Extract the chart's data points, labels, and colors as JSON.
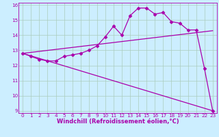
{
  "xlabel": "Windchill (Refroidissement éolien,°C)",
  "bg_color": "#cceeff",
  "grid_color": "#aaccbb",
  "line_color": "#aa00aa",
  "spine_color": "#aa00aa",
  "xlim": [
    -0.5,
    23.5
  ],
  "ylim": [
    8.85,
    16.15
  ],
  "xticks": [
    0,
    1,
    2,
    3,
    4,
    5,
    6,
    7,
    8,
    9,
    10,
    11,
    12,
    13,
    14,
    15,
    16,
    17,
    18,
    19,
    20,
    21,
    22,
    23
  ],
  "yticks": [
    9,
    10,
    11,
    12,
    13,
    14,
    15,
    16
  ],
  "line1_x": [
    0,
    1,
    2,
    3,
    4,
    5,
    6,
    7,
    8,
    9,
    10,
    11,
    12,
    13,
    14,
    15,
    16,
    17,
    18,
    19,
    20,
    21,
    22,
    23
  ],
  "line1_y": [
    12.8,
    12.6,
    12.4,
    12.3,
    12.3,
    12.6,
    12.7,
    12.8,
    13.0,
    13.3,
    13.9,
    14.6,
    14.0,
    15.3,
    15.8,
    15.8,
    15.4,
    15.5,
    14.9,
    14.8,
    14.35,
    14.35,
    11.8,
    9.0
  ],
  "line2_x": [
    0,
    23
  ],
  "line2_y": [
    12.8,
    14.3
  ],
  "line3_x": [
    0,
    23
  ],
  "line3_y": [
    12.8,
    9.0
  ],
  "marker": "D",
  "marker_size": 2.5,
  "line_width": 0.9,
  "tick_labelsize": 5.2,
  "xlabel_fontsize": 6.0
}
